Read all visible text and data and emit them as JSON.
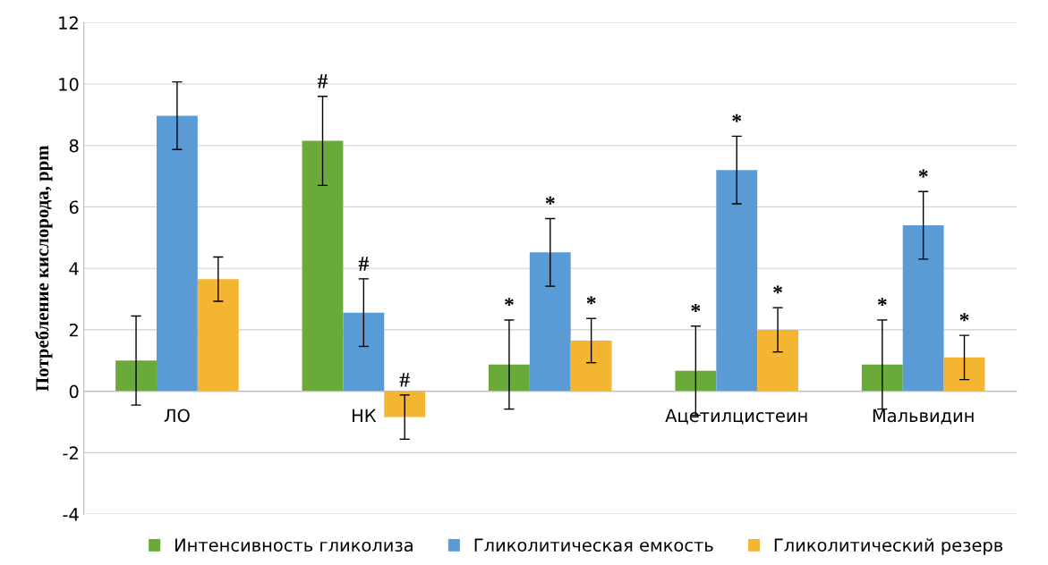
{
  "chart_data": {
    "type": "bar",
    "ylabel": "Потребление кислорода, ppm",
    "categories": [
      "ЛО",
      "НК",
      null,
      "Ацетилцистеин",
      "Мальвидин"
    ],
    "series": [
      {
        "name": "Интенсивность гликолиза",
        "color": "#6aaa3a",
        "values": [
          1.0,
          8.15,
          0.87,
          0.67,
          0.87
        ],
        "errors": [
          1.45,
          1.45,
          1.45,
          1.45,
          1.45
        ],
        "value_labels": [
          null,
          "#",
          "*",
          "*",
          "*"
        ]
      },
      {
        "name": "Гликолитическая емкость",
        "color": "#5b9bd5",
        "values": [
          8.97,
          2.56,
          4.52,
          7.2,
          5.4
        ],
        "errors": [
          1.1,
          1.1,
          1.1,
          1.1,
          1.1
        ],
        "value_labels": [
          null,
          "#",
          "*",
          "*",
          "*"
        ]
      },
      {
        "name": "Гликолитический резерв",
        "color": "#f4b533",
        "values": [
          3.65,
          -0.84,
          1.65,
          2.0,
          1.1
        ],
        "errors": [
          0.72,
          0.72,
          0.72,
          0.72,
          0.72
        ],
        "value_labels": [
          null,
          "#",
          "*",
          "*",
          "*"
        ]
      }
    ],
    "ylim": [
      -4,
      12
    ],
    "yticks": [
      -4,
      -2,
      0,
      2,
      4,
      6,
      8,
      10,
      12
    ],
    "grid": "y",
    "legend": "bottom"
  }
}
